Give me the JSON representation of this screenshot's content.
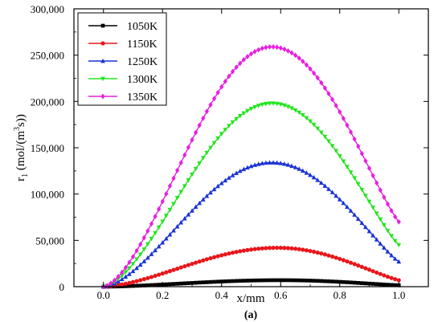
{
  "chart_data": {
    "type": "scatter",
    "xlabel": "x/mm",
    "ylabel": "r1 (mol/(m3s))",
    "caption": "(a)",
    "xlim": [
      -0.1,
      1.1
    ],
    "ylim": [
      0,
      300000
    ],
    "xticks": [
      0.0,
      0.2,
      0.4,
      0.6,
      0.8,
      1.0
    ],
    "xtick_labels": [
      "0.0",
      "0.2",
      "0.4",
      "0.6",
      "0.8",
      "1.0"
    ],
    "yticks": [
      0,
      50000,
      100000,
      150000,
      200000,
      250000,
      300000
    ],
    "ytick_labels": [
      "0",
      "50,000",
      "100,000",
      "150,000",
      "200,000",
      "250,000",
      "300,000"
    ],
    "legend_position": "top-left",
    "x_points": 80,
    "series": [
      {
        "name": "1050K",
        "color": "#000000",
        "marker": "square",
        "peak": 7000,
        "peak_x": 0.6,
        "start": 0,
        "end": 1500
      },
      {
        "name": "1150K",
        "color": "#e8161b",
        "marker": "circle",
        "peak": 42000,
        "peak_x": 0.59,
        "start": 0,
        "end": 7000
      },
      {
        "name": "1250K",
        "color": "#1a33d6",
        "marker": "triangle-up",
        "peak": 134000,
        "peak_x": 0.57,
        "start": 0,
        "end": 27000
      },
      {
        "name": "1300K",
        "color": "#22e51e",
        "marker": "triangle-down",
        "peak": 198000,
        "peak_x": 0.57,
        "start": 0,
        "end": 45000
      },
      {
        "name": "1350K",
        "color": "#e81fe0",
        "marker": "diamond",
        "peak": 259000,
        "peak_x": 0.57,
        "start": 0,
        "end": 70000
      }
    ]
  }
}
